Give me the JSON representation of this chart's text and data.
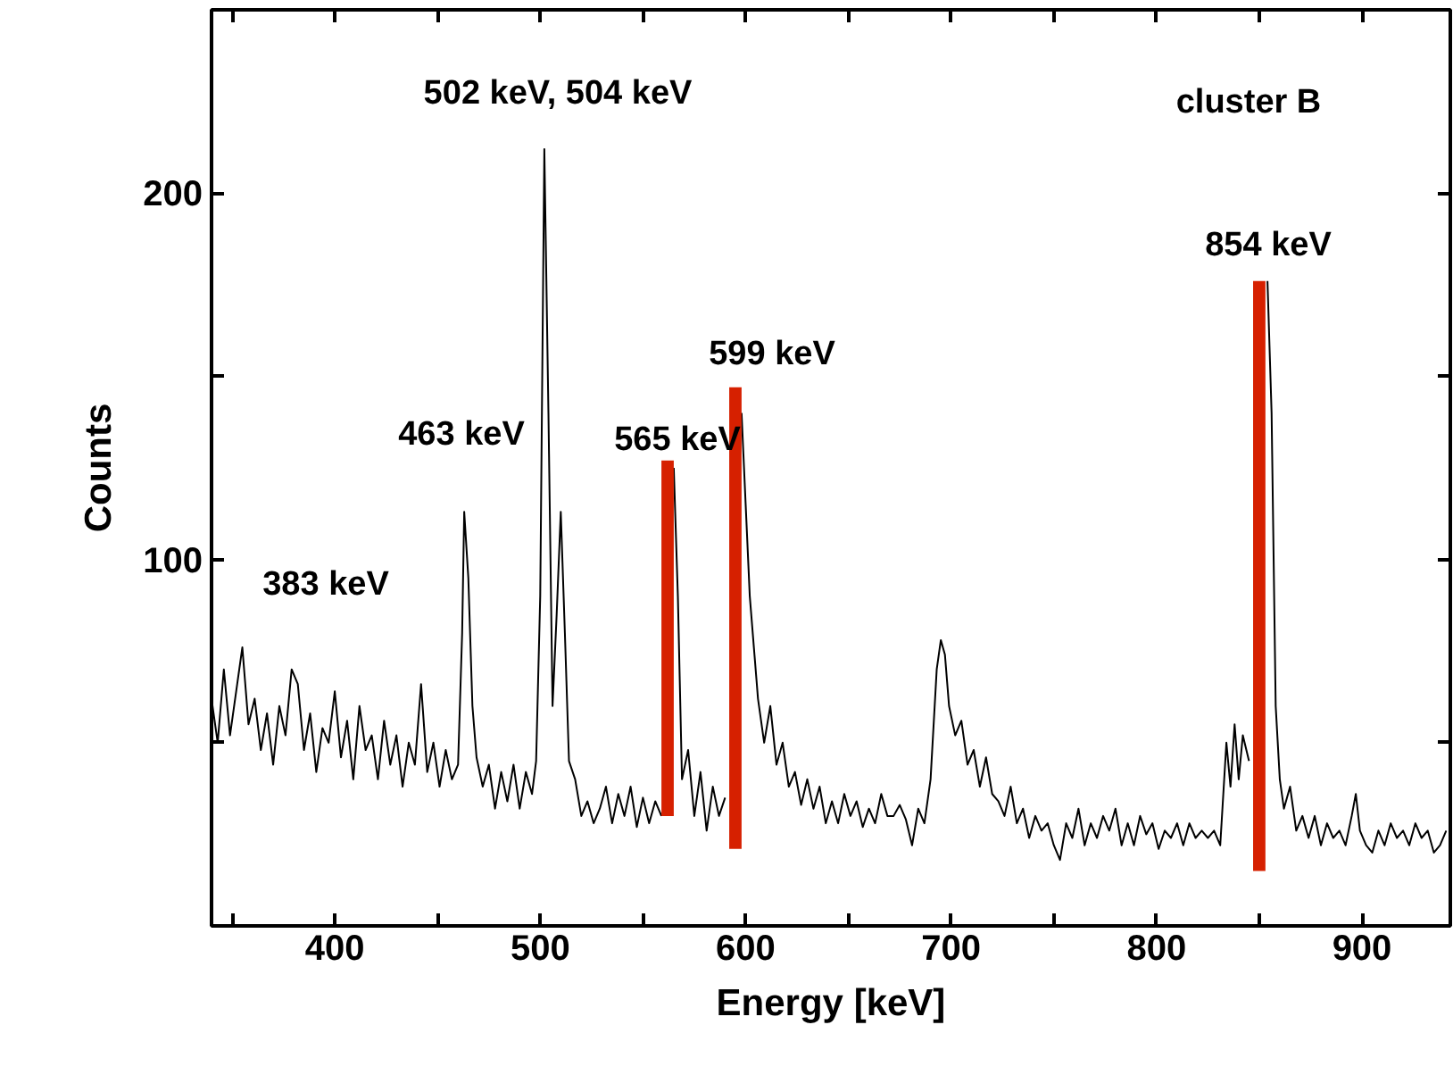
{
  "chart_data": {
    "type": "line",
    "xlabel": "Energy [keV]",
    "ylabel": "Counts",
    "xlim": [
      340,
      943
    ],
    "ylim": [
      0,
      250
    ],
    "xticks": [
      {
        "value": 350,
        "label": null
      },
      400,
      {
        "value": 450,
        "label": null
      },
      500,
      {
        "value": 550,
        "label": null
      },
      600,
      {
        "value": 650,
        "label": null
      },
      700,
      {
        "value": 750,
        "label": null
      },
      800,
      {
        "value": 850,
        "label": null
      },
      900
    ],
    "yticks": [
      {
        "value": 50,
        "label": null
      },
      100,
      {
        "value": 150,
        "label": null
      },
      200
    ],
    "grid": false,
    "series": [
      {
        "color": "#000000",
        "x": [
          340,
          343,
          346,
          349,
          352,
          355,
          358,
          361,
          364,
          367,
          370,
          373,
          376,
          379,
          382,
          385,
          388,
          391,
          394,
          397,
          400,
          403,
          406,
          409,
          412,
          415,
          418,
          421,
          424,
          427,
          430,
          433,
          436,
          439,
          442,
          445,
          448,
          451,
          454,
          457,
          460,
          462,
          463,
          465,
          467,
          469,
          472,
          475,
          478,
          481,
          484,
          487,
          490,
          493,
          496,
          498,
          500,
          502,
          504,
          506,
          508,
          510,
          512,
          514,
          517,
          520,
          523,
          526,
          529,
          532,
          535,
          538,
          541,
          544,
          547,
          550,
          553,
          556,
          559,
          561,
          563,
          565,
          567,
          569,
          572,
          575,
          578,
          581,
          584,
          587,
          590,
          593,
          595,
          598,
          600,
          602,
          604,
          606,
          609,
          612,
          615,
          618,
          621,
          624,
          627,
          630,
          633,
          636,
          639,
          642,
          645,
          648,
          651,
          654,
          657,
          660,
          663,
          666,
          669,
          672,
          675,
          678,
          681,
          684,
          687,
          690,
          693,
          695,
          697,
          699,
          702,
          705,
          708,
          711,
          714,
          717,
          720,
          723,
          726,
          729,
          732,
          735,
          738,
          741,
          744,
          747,
          750,
          753,
          756,
          759,
          762,
          765,
          768,
          771,
          774,
          777,
          780,
          783,
          786,
          789,
          792,
          795,
          798,
          801,
          804,
          807,
          810,
          813,
          816,
          819,
          822,
          825,
          828,
          831,
          834,
          836,
          838,
          840,
          842,
          845,
          848,
          850,
          852,
          854,
          856,
          858,
          860,
          862,
          865,
          868,
          871,
          874,
          877,
          880,
          883,
          886,
          889,
          892,
          895,
          897,
          899,
          902,
          905,
          908,
          911,
          914,
          917,
          920,
          923,
          926,
          929,
          932,
          935,
          938,
          941
        ],
        "values": [
          62,
          50,
          70,
          52,
          64,
          76,
          55,
          62,
          48,
          58,
          44,
          60,
          52,
          70,
          66,
          48,
          58,
          42,
          54,
          50,
          64,
          46,
          56,
          40,
          60,
          48,
          52,
          40,
          56,
          44,
          52,
          38,
          50,
          44,
          66,
          42,
          50,
          38,
          48,
          40,
          44,
          80,
          113,
          95,
          60,
          46,
          38,
          44,
          32,
          42,
          34,
          44,
          32,
          42,
          36,
          45,
          90,
          212,
          140,
          60,
          85,
          113,
          80,
          45,
          40,
          30,
          34,
          28,
          32,
          38,
          28,
          36,
          30,
          38,
          27,
          35,
          28,
          34,
          30,
          null,
          null,
          125,
          90,
          40,
          48,
          30,
          42,
          26,
          38,
          30,
          35,
          null,
          null,
          140,
          115,
          90,
          76,
          62,
          50,
          60,
          44,
          50,
          38,
          42,
          33,
          40,
          32,
          38,
          28,
          34,
          28,
          36,
          30,
          34,
          27,
          32,
          28,
          36,
          30,
          30,
          33,
          29,
          22,
          32,
          28,
          40,
          70,
          78,
          74,
          60,
          52,
          56,
          44,
          48,
          38,
          46,
          36,
          34,
          30,
          38,
          28,
          32,
          24,
          30,
          26,
          28,
          22,
          18,
          28,
          24,
          32,
          22,
          28,
          24,
          30,
          26,
          32,
          22,
          28,
          22,
          30,
          25,
          28,
          21,
          26,
          24,
          28,
          22,
          28,
          24,
          26,
          24,
          26,
          22,
          50,
          38,
          55,
          40,
          52,
          45,
          null,
          null,
          null,
          176,
          140,
          60,
          40,
          32,
          38,
          26,
          30,
          24,
          30,
          22,
          28,
          24,
          26,
          22,
          30,
          36,
          26,
          22,
          20,
          26,
          22,
          28,
          24,
          26,
          22,
          28,
          24,
          26,
          20,
          22,
          26
        ]
      },
      {
        "type": "bar",
        "color": "#d62000",
        "x": [
          562,
          595,
          850
        ],
        "base": [
          30,
          21,
          15
        ],
        "values": [
          97,
          126,
          161
        ]
      }
    ],
    "annotations": [
      "383 keV",
      "463 keV",
      "502 keV, 504 keV",
      "565 keV",
      "599 keV",
      "854 keV",
      "cluster B"
    ]
  }
}
